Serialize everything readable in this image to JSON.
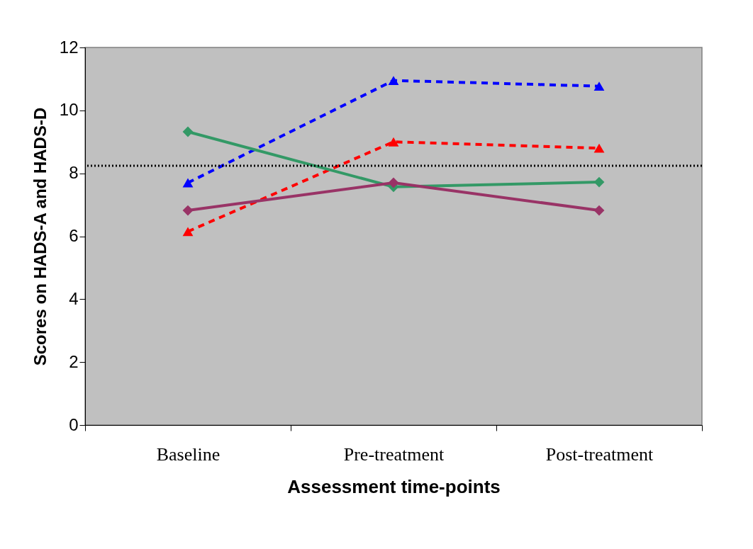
{
  "chart_data": {
    "type": "line",
    "xlabel": "Assessment time-points",
    "ylabel": "Scores on HADS-A and HADS-D",
    "categories": [
      "Baseline",
      "Pre-treatment",
      "Post-treatment"
    ],
    "series": [
      {
        "color": "#0000ff",
        "values": [
          7.7,
          10.95,
          10.77
        ],
        "marker": "triangle",
        "line_style": "dashed"
      },
      {
        "color": "#ff0000",
        "values": [
          6.15,
          9.0,
          8.8
        ],
        "marker": "triangle",
        "line_style": "dashed"
      },
      {
        "color": "#339966",
        "values": [
          9.32,
          7.57,
          7.72
        ],
        "marker": "diamond",
        "line_style": "solid"
      },
      {
        "color": "#993366",
        "values": [
          6.82,
          7.7,
          6.82
        ],
        "marker": "diamond",
        "line_style": "solid"
      }
    ],
    "ylim": [
      0,
      12
    ],
    "yticks": [
      0,
      2,
      4,
      6,
      8,
      10,
      12
    ],
    "ref_lines": [
      {
        "axis": "y",
        "value": 8.24,
        "color": "#000000",
        "line_style": "dotted"
      }
    ],
    "grid": false
  }
}
